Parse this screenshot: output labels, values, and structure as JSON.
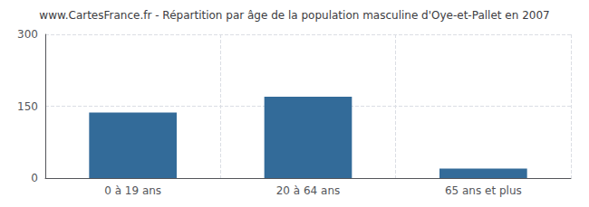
{
  "chart_data": {
    "type": "bar",
    "title": "www.CartesFrance.fr - Répartition par âge de la population masculine d'Oye-et-Pallet en 2007",
    "categories": [
      "0 à 19 ans",
      "20 à 64 ans",
      "65 ans et plus"
    ],
    "values": [
      137,
      170,
      20
    ],
    "color": "#336b99",
    "ylim": [
      0,
      300
    ],
    "yticks": [
      0,
      150,
      300
    ],
    "grid": true
  }
}
